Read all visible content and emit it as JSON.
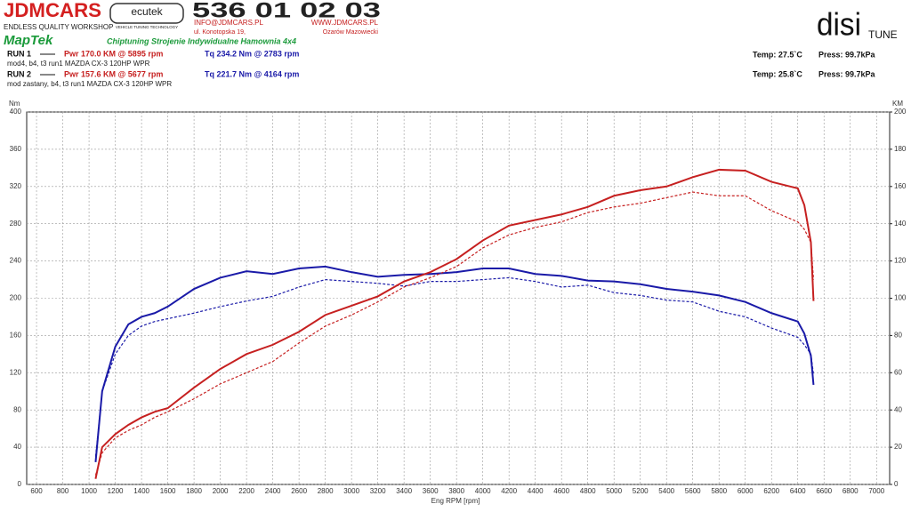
{
  "header": {
    "brand": "JDMCARS",
    "slogan": "ENDLESS QUALITY WORKSHOP",
    "partner": "ecutek",
    "partner_tagline": "VEHICLE TUNING TECHNOLOGY",
    "phone": "536 01 02 03",
    "email": "INFO@JDMCARS.PL",
    "website": "WWW.JDMCARS.PL",
    "street": "ul. Konotopska 19,",
    "city": "Ożarów Mazowiecki",
    "maptek": "MapTek",
    "services": "Chiptuning Strojenie Indywidualne Hamownia 4x4",
    "dyno_brand": "disi",
    "dyno_suffix": "TUNE"
  },
  "runs": [
    {
      "label": "RUN 1",
      "power": "Pwr  170.0 KM @ 5895 rpm",
      "torque": "Tq  234.2 Nm @ 2783 rpm",
      "note": "mod4, b4, t3 run1 MAZDA CX-3 120HP WPR",
      "temp": "Temp: 27.5`C",
      "press": "Press: 99.7kPa"
    },
    {
      "label": "RUN 2",
      "power": "Pwr  157.6 KM @ 5677 rpm",
      "torque": "Tq  221.7 Nm @ 4164 rpm",
      "note": "mod zastany, b4, t3 run1 MAZDA CX-3 120HP WPR",
      "temp": "Temp: 25.8`C",
      "press": "Press: 99.7kPa"
    }
  ],
  "chart_data": {
    "type": "line",
    "x_label": "Eng RPM [rpm]",
    "y_label": "Nm",
    "y2_label": "KM",
    "grid": true,
    "x": [
      1050,
      1100,
      1200,
      1300,
      1400,
      1500,
      1600,
      1800,
      2000,
      2200,
      2400,
      2600,
      2800,
      3000,
      3200,
      3400,
      3600,
      3800,
      4000,
      4200,
      4400,
      4600,
      4800,
      5000,
      5200,
      5400,
      5600,
      5800,
      6000,
      6200,
      6400,
      6450,
      6500,
      6520
    ],
    "series": [
      {
        "color": "#1a1aa8",
        "style": "solid",
        "axis": "y",
        "values": [
          24,
          100,
          148,
          172,
          180,
          184,
          191,
          210,
          222,
          229,
          226,
          232,
          234,
          228,
          223,
          225,
          226,
          228,
          232,
          232,
          226,
          224,
          219,
          218,
          215,
          210,
          207,
          203,
          196,
          184,
          175,
          162,
          138,
          107
        ]
      },
      {
        "color": "#1a1aa8",
        "style": "dashed",
        "axis": "y",
        "values": [
          30,
          100,
          140,
          160,
          170,
          175,
          178,
          184,
          191,
          197,
          202,
          212,
          220,
          218,
          216,
          213,
          218,
          218,
          220,
          222,
          218,
          212,
          214,
          206,
          203,
          198,
          196,
          186,
          180,
          168,
          158,
          150,
          140,
          118
        ]
      },
      {
        "color": "#c62020",
        "style": "solid",
        "axis": "y2",
        "values": [
          3,
          20,
          27,
          32,
          36,
          39,
          41,
          52,
          62,
          70,
          75,
          82,
          91,
          96,
          101,
          109,
          114,
          121,
          131,
          139,
          142,
          145,
          149,
          155,
          158,
          160,
          165,
          169,
          168.5,
          162.5,
          159,
          150,
          130,
          98.5
        ]
      },
      {
        "color": "#c62020",
        "style": "dashed",
        "axis": "y2",
        "values": [
          5,
          17,
          25,
          29,
          32,
          36,
          39,
          46,
          54,
          60,
          66,
          76,
          85,
          91,
          98,
          106,
          111,
          117,
          127,
          134,
          138,
          141,
          146,
          149,
          151,
          154,
          157,
          155,
          155,
          147,
          141,
          137,
          130,
          110
        ]
      }
    ],
    "xlim": [
      525,
      7100
    ],
    "xticks": [
      600,
      800,
      1000,
      1200,
      1400,
      1600,
      1800,
      2000,
      2200,
      2400,
      2600,
      2800,
      3000,
      3200,
      3400,
      3600,
      3800,
      4000,
      4200,
      4400,
      4600,
      4800,
      5000,
      5200,
      5400,
      5600,
      5800,
      6000,
      6200,
      6400,
      6600,
      6800,
      7000
    ],
    "ylim": [
      0,
      400
    ],
    "yticks": [
      0,
      40,
      80,
      120,
      160,
      200,
      240,
      280,
      320,
      360,
      400
    ],
    "y2lim": [
      0,
      200
    ],
    "y2ticks": [
      0,
      20,
      40,
      60,
      80,
      100,
      120,
      140,
      160,
      180,
      200
    ]
  }
}
